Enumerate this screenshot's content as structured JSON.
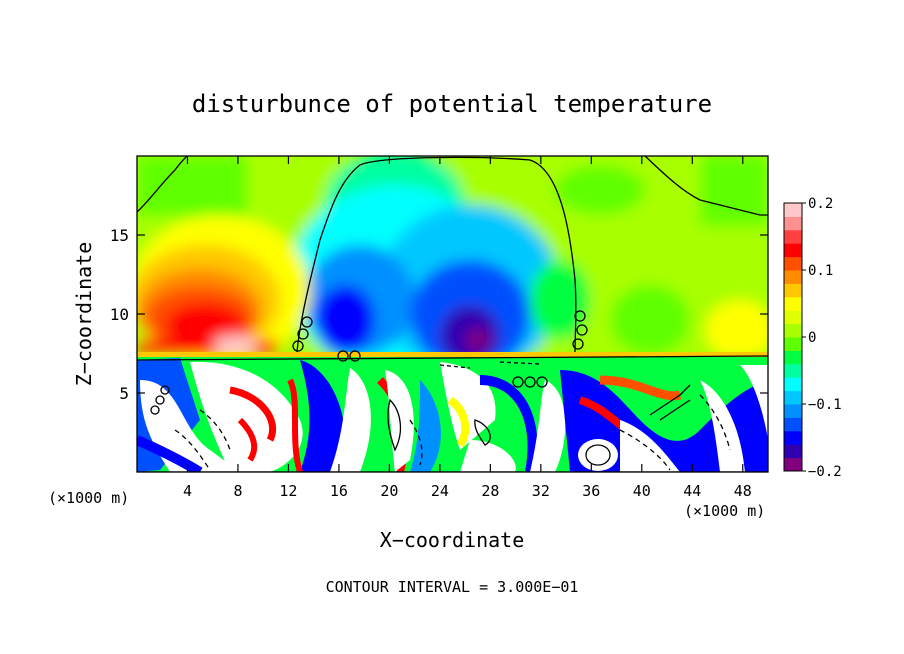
{
  "chart_data": {
    "type": "heatmap",
    "title": "disturbunce of potential temperature",
    "xlabel": "X−coordinate",
    "ylabel": "Z−coordinate",
    "x_unit_left": "(×1000 m)",
    "x_unit_right": "(×1000 m)",
    "footer": "CONTOUR INTERVAL = 3.000E−01",
    "xlim": [
      0,
      50
    ],
    "ylim": [
      0,
      20
    ],
    "x_ticks": [
      4,
      8,
      12,
      16,
      20,
      24,
      28,
      32,
      36,
      40,
      44,
      48
    ],
    "x_tick_labels": [
      "4",
      "8",
      "12",
      "16",
      "20",
      "24",
      "28",
      "32",
      "36",
      "40",
      "44",
      "48"
    ],
    "y_ticks": [
      5,
      10,
      15
    ],
    "y_tick_labels": [
      "5",
      "10",
      "15"
    ],
    "colorbar": {
      "min": -0.2,
      "max": 0.2,
      "ticks": [
        0.2,
        0.1,
        0,
        -0.1,
        -0.2
      ],
      "tick_labels": [
        "0.2",
        "0.1",
        "0",
        "−0.1",
        "−0.2"
      ],
      "colors": [
        "#800080",
        "#3000b0",
        "#0000ff",
        "#0050ff",
        "#0090ff",
        "#00c8ff",
        "#00ffff",
        "#00ffa0",
        "#00ff40",
        "#60ff00",
        "#a8ff00",
        "#e0ff00",
        "#ffff00",
        "#ffc800",
        "#ff8c00",
        "#ff5000",
        "#ff0000",
        "#ff4040",
        "#ff9090",
        "#ffc8c8"
      ]
    },
    "grid": false,
    "legend": "right colorbar"
  }
}
